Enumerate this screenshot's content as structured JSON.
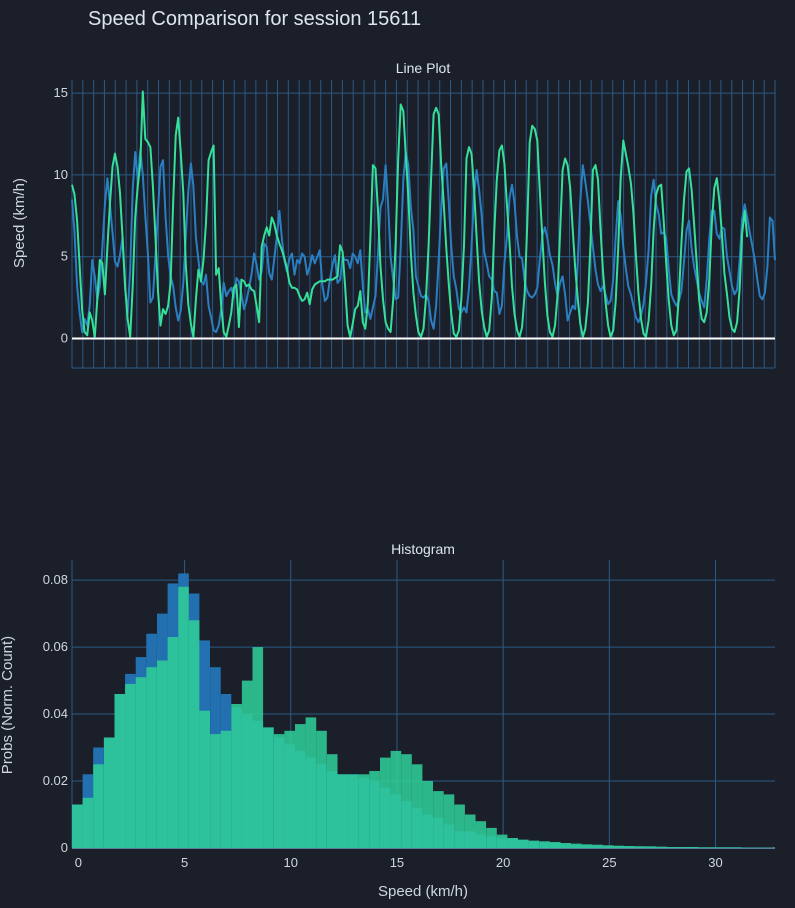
{
  "title": "Speed Comparison for session 15611",
  "colors": {
    "background": "#1b1f2a",
    "grid": "#2b5a86",
    "zero_line": "#ffffff",
    "series_blue": "#2a7fc1",
    "series_green": "#35e09a",
    "hist_blue": "#2270b0",
    "hist_green": "#2fcd98"
  },
  "chart_data": [
    {
      "type": "line",
      "title": "Line Plot",
      "xlabel": "",
      "ylabel": "Speed (km/h)",
      "ylim": [
        -1.8,
        15.8
      ],
      "yticks": [
        0,
        5,
        10,
        15
      ],
      "grid": true,
      "legend": "none",
      "x": "sample index 0-279 (no x tick labels shown)",
      "series": [
        {
          "color": "#2a7fc1",
          "values": [
            8.5,
            6.5,
            3.2,
            1.6,
            0.4,
            1.2,
            0.8,
            2.0,
            4.8,
            3.8,
            2.4,
            3.2,
            5.5,
            8.2,
            9.8,
            8.2,
            6.5,
            4.7,
            4.4,
            5.1,
            6.2,
            3.1,
            1.5,
            4.2,
            9.1,
            11.4,
            9.7,
            11.5,
            10.0,
            7.5,
            5.2,
            2.2,
            2.5,
            5.0,
            7.8,
            10.5,
            10.9,
            7.4,
            5.1,
            3.8,
            3.2,
            1.9,
            1.1,
            1.7,
            3.4,
            6.2,
            9.0,
            10.7,
            9.3,
            6.2,
            4.8,
            3.5,
            3.3,
            3.9,
            2.0,
            1.3,
            0.5,
            0.4,
            0.8,
            1.8,
            3.4,
            2.6,
            2.9,
            3.1,
            2.5,
            3.7,
            3.5,
            2.7,
            1.8,
            2.3,
            3.1,
            3.9,
            5.2,
            4.5,
            3.6,
            4.1,
            5.8,
            5.6,
            4.0,
            3.6,
            4.9,
            6.2,
            7.8,
            6.1,
            4.8,
            4.1,
            4.9,
            5.2,
            3.9,
            4.8,
            4.6,
            5.2,
            5.0,
            3.9,
            4.4,
            5.1,
            4.6,
            5.0,
            5.4,
            3.3,
            2.3,
            2.5,
            3.6,
            4.5,
            5.1,
            3.4,
            3.6,
            5.0,
            4.8,
            4.8,
            4.3,
            5.2,
            5.0,
            4.6,
            5.4,
            3.2,
            1.6,
            1.8,
            1.2,
            1.9,
            2.6,
            5.2,
            8.0,
            8.5,
            10.6,
            8.2,
            5.0,
            3.6,
            2.4,
            2.5,
            5.5,
            9.7,
            11.4,
            10.6,
            8.0,
            6.6,
            3.8,
            3.2,
            2.6,
            2.5,
            2.7,
            2.3,
            1.1,
            0.6,
            2.0,
            4.8,
            7.9,
            10.4,
            10.7,
            8.3,
            5.6,
            3.8,
            3.0,
            1.8,
            1.6,
            1.9,
            1.6,
            3.1,
            5.6,
            8.8,
            10.3,
            9.1,
            7.5,
            5.3,
            4.6,
            3.8,
            3.6,
            2.9,
            2.8,
            1.5,
            2.0,
            4.6,
            6.2,
            8.6,
            9.4,
            8.3,
            6.2,
            5.0,
            4.9,
            3.5,
            2.9,
            2.6,
            2.5,
            2.7,
            3.1,
            4.8,
            6.3,
            6.8,
            6.1,
            5.1,
            4.5,
            3.4,
            2.6,
            3.4,
            3.8,
            2.7,
            1.1,
            1.6,
            2.0,
            1.8,
            4.7,
            8.4,
            10.6,
            9.6,
            8.4,
            7.0,
            5.6,
            4.2,
            3.3,
            2.9,
            3.2,
            2.7,
            2.1,
            2.3,
            3.6,
            6.2,
            8.4,
            7.5,
            5.6,
            4.3,
            3.2,
            2.7,
            2.0,
            1.3,
            1.0,
            1.4,
            2.1,
            3.4,
            5.4,
            8.7,
            9.7,
            8.2,
            7.6,
            6.4,
            6.5,
            6.1,
            4.2,
            2.7,
            2.3,
            2.0,
            2.3,
            2.9,
            4.7,
            6.6,
            7.2,
            5.5,
            4.4,
            3.6,
            2.8,
            2.3,
            1.9,
            3.6,
            6.1,
            7.8,
            7.8,
            6.4,
            6.1,
            6.8,
            6.7,
            5.0,
            4.1,
            3.2,
            2.7,
            3.0,
            4.7,
            7.3,
            8.2,
            7.4,
            6.5,
            5.7,
            4.8,
            3.6,
            2.6,
            2.4,
            2.8,
            4.4,
            7.4,
            7.2,
            4.8
          ]
        },
        {
          "color": "#35e09a",
          "values": [
            9.4,
            8.8,
            7.2,
            4.5,
            1.8,
            0.4,
            0.2,
            1.6,
            1.1,
            0.1,
            2.4,
            4.8,
            4.6,
            2.7,
            5.6,
            8.2,
            10.5,
            11.3,
            10.5,
            8.9,
            6.1,
            3.2,
            1.2,
            0.1,
            3.2,
            7.4,
            9.3,
            10.7,
            15.1,
            12.2,
            12.0,
            11.7,
            9.3,
            6.3,
            2.9,
            0.8,
            1.8,
            1.5,
            2.0,
            3.4,
            8.4,
            12.4,
            13.5,
            11.4,
            8.9,
            4.5,
            2.1,
            0.9,
            0.1,
            2.4,
            4.2,
            3.5,
            4.8,
            7.1,
            10.9,
            11.4,
            11.8,
            3.9,
            4.3,
            2.0,
            0.4,
            0.1,
            0.8,
            1.6,
            3.1,
            3.3,
            0.7,
            3.6,
            3.5,
            3.2,
            3.3,
            3.0,
            2.9,
            2.0,
            1.0,
            5.6,
            6.3,
            6.8,
            6.3,
            7.4,
            7.0,
            6.3,
            5.8,
            5.4,
            4.9,
            4.3,
            3.4,
            3.1,
            3.1,
            3.0,
            2.6,
            2.3,
            2.4,
            2.8,
            2.1,
            3.0,
            3.3,
            3.4,
            3.5,
            3.5,
            3.5,
            3.6,
            3.6,
            3.6,
            3.7,
            3.8,
            5.7,
            5.3,
            3.2,
            0.8,
            0.1,
            0.9,
            1.8,
            2.0,
            2.9,
            1.0,
            0.6,
            2.2,
            6.2,
            10.6,
            10.4,
            7.8,
            4.4,
            2.4,
            1.0,
            0.6,
            0.4,
            2.4,
            5.9,
            11.0,
            14.3,
            13.9,
            11.2,
            8.7,
            5.2,
            2.8,
            1.4,
            0.4,
            0.1,
            0.6,
            2.5,
            5.7,
            9.8,
            13.7,
            14.1,
            13.7,
            10.6,
            8.3,
            5.5,
            3.3,
            1.5,
            0.3,
            0.1,
            0.5,
            2.5,
            5.7,
            11.0,
            11.7,
            11.3,
            9.1,
            6.2,
            3.5,
            1.7,
            0.7,
            0.1,
            0.5,
            2.5,
            6.6,
            9.7,
            11.5,
            11.8,
            10.7,
            8.2,
            5.9,
            3.2,
            1.5,
            0.5,
            0.1,
            0.7,
            2.8,
            6.9,
            12.0,
            13.0,
            12.8,
            12.1,
            9.0,
            6.1,
            3.4,
            1.4,
            0.4,
            0.1,
            0.8,
            2.6,
            6.5,
            10.3,
            11.0,
            10.6,
            9.2,
            6.7,
            4.3,
            2.4,
            0.9,
            0.1,
            0.6,
            2.2,
            5.7,
            10.3,
            10.6,
            9.7,
            6.7,
            4.1,
            2.2,
            0.8,
            0.1,
            0.5,
            2.3,
            5.5,
            9.8,
            12.1,
            11.3,
            10.5,
            9.5,
            7.7,
            5.1,
            2.8,
            1.2,
            0.3,
            0.1,
            1.1,
            3.2,
            6.6,
            8.8,
            9.3,
            9.4,
            7.2,
            4.5,
            2.3,
            0.8,
            0.2,
            0.5,
            2.6,
            5.8,
            8.5,
            10.2,
            10.4,
            9.1,
            7.0,
            4.7,
            2.4,
            1.2,
            1.0,
            1.6,
            3.6,
            7.0,
            9.2,
            9.8,
            8.4,
            6.4,
            4.0,
            2.7,
            1.3,
            0.6,
            0.4,
            1.0,
            3.0,
            6.4,
            7.8,
            6.2
          ]
        }
      ]
    },
    {
      "type": "bar",
      "title": "Histogram",
      "xlabel": "Speed (km/h)",
      "ylabel": "Probs (Norm. Count)",
      "xlim": [
        -0.3,
        32.8
      ],
      "ylim": [
        0,
        0.086
      ],
      "xticks": [
        0,
        5,
        10,
        15,
        20,
        25,
        30
      ],
      "yticks": [
        0,
        0.02,
        0.04,
        0.06,
        0.08
      ],
      "bin_width": 0.5,
      "bin_start": -0.3,
      "grid": true,
      "legend": "none",
      "series": [
        {
          "color": "#2270b0",
          "values": [
            0.013,
            0.022,
            0.03,
            0.033,
            0.046,
            0.052,
            0.057,
            0.064,
            0.07,
            0.079,
            0.082,
            0.076,
            0.062,
            0.054,
            0.046,
            0.042,
            0.04,
            0.038,
            0.036,
            0.033,
            0.031,
            0.029,
            0.027,
            0.025,
            0.023,
            0.022,
            0.022,
            0.021,
            0.02,
            0.018,
            0.016,
            0.014,
            0.012,
            0.01,
            0.009,
            0.007,
            0.005,
            0.005,
            0.004,
            0.0035,
            0.003,
            0.0028,
            0.0024,
            0.002,
            0.0018,
            0.0015,
            0.0013,
            0.001,
            0.0009,
            0.0008,
            0.0007,
            0.0006,
            0.0005,
            0.0005,
            0.0004,
            0.0004,
            0.0003,
            0.0003,
            0.0003,
            0.0002,
            0.0002,
            0.0002,
            0.0002,
            0.0001,
            0.0001,
            0.0001
          ]
        },
        {
          "color": "#2fcd98",
          "values": [
            0.013,
            0.015,
            0.025,
            0.033,
            0.046,
            0.049,
            0.051,
            0.054,
            0.056,
            0.063,
            0.078,
            0.068,
            0.041,
            0.034,
            0.035,
            0.043,
            0.05,
            0.06,
            0.036,
            0.034,
            0.035,
            0.037,
            0.039,
            0.035,
            0.028,
            0.022,
            0.022,
            0.022,
            0.023,
            0.027,
            0.029,
            0.028,
            0.025,
            0.02,
            0.017,
            0.016,
            0.013,
            0.01,
            0.008,
            0.006,
            0.004,
            0.003,
            0.0025,
            0.0022,
            0.002,
            0.0018,
            0.0015,
            0.0013,
            0.0011,
            0.001,
            0.0008,
            0.0007,
            0.0006,
            0.0005,
            0.0005,
            0.0004,
            0.0003,
            0.0003,
            0.0003,
            0.0002,
            0.0002,
            0.0002,
            0.0002,
            0.0001,
            0.0001,
            0.0001
          ]
        }
      ]
    }
  ]
}
